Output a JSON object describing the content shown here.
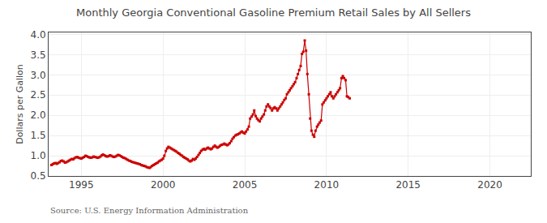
{
  "chart_data": {
    "type": "line",
    "title": "Monthly Georgia Conventional Gasoline Premium Retail Sales by All Sellers",
    "ylabel": "Dollars per Gallon",
    "annotations": [
      "Source: U.S. Energy Information Administration"
    ],
    "color": "#CC0000",
    "marker": "square",
    "grid": true,
    "xlim": [
      1993.0,
      2022.5
    ],
    "ylim": [
      0.5,
      4.05
    ],
    "xticks": [
      1995,
      2000,
      2005,
      2010,
      2015,
      2020
    ],
    "yticks": [
      0.5,
      {
        "value": 1.0,
        "label": "1.0"
      },
      1.5,
      {
        "value": 2.0,
        "label": "2.0"
      },
      2.5,
      {
        "value": 3.0,
        "label": "3.0"
      },
      3.5,
      {
        "value": 4.0,
        "label": "4.0"
      }
    ],
    "x": [
      1993.17,
      1993.25,
      1993.33,
      1993.42,
      1993.5,
      1993.58,
      1993.67,
      1993.75,
      1993.83,
      1993.92,
      1994.0,
      1994.08,
      1994.17,
      1994.25,
      1994.33,
      1994.42,
      1994.5,
      1994.58,
      1994.67,
      1994.75,
      1994.83,
      1994.92,
      1995.0,
      1995.08,
      1995.17,
      1995.25,
      1995.33,
      1995.42,
      1995.5,
      1995.58,
      1995.67,
      1995.75,
      1995.83,
      1995.92,
      1996.0,
      1996.08,
      1996.17,
      1996.25,
      1996.33,
      1996.42,
      1996.5,
      1996.58,
      1996.67,
      1996.75,
      1996.83,
      1996.92,
      1997.0,
      1997.08,
      1997.17,
      1997.25,
      1997.33,
      1997.42,
      1997.5,
      1997.58,
      1997.67,
      1997.75,
      1997.83,
      1997.92,
      1998.0,
      1998.08,
      1998.17,
      1998.25,
      1998.33,
      1998.42,
      1998.5,
      1998.58,
      1998.67,
      1998.75,
      1998.83,
      1998.92,
      1999.0,
      1999.08,
      1999.17,
      1999.25,
      1999.33,
      1999.42,
      1999.5,
      1999.58,
      1999.67,
      1999.75,
      1999.83,
      1999.92,
      2000.0,
      2000.08,
      2000.17,
      2000.25,
      2000.33,
      2000.42,
      2000.5,
      2000.58,
      2000.67,
      2000.75,
      2000.83,
      2000.92,
      2001.0,
      2001.08,
      2001.17,
      2001.25,
      2001.33,
      2001.42,
      2001.5,
      2001.58,
      2001.67,
      2001.75,
      2001.83,
      2001.92,
      2002.0,
      2002.08,
      2002.17,
      2002.25,
      2002.33,
      2002.42,
      2002.5,
      2002.58,
      2002.67,
      2002.75,
      2002.83,
      2002.92,
      2003.0,
      2003.08,
      2003.17,
      2003.25,
      2003.33,
      2003.42,
      2003.5,
      2003.58,
      2003.67,
      2003.75,
      2003.83,
      2003.92,
      2004.0,
      2004.08,
      2004.17,
      2004.25,
      2004.33,
      2004.42,
      2004.5,
      2004.58,
      2004.67,
      2004.75,
      2004.83,
      2004.92,
      2005.0,
      2005.08,
      2005.17,
      2005.25,
      2005.33,
      2005.42,
      2005.5,
      2005.58,
      2005.67,
      2005.75,
      2005.83,
      2005.92,
      2006.0,
      2006.08,
      2006.17,
      2006.25,
      2006.33,
      2006.42,
      2006.5,
      2006.58,
      2006.67,
      2006.75,
      2006.83,
      2006.92,
      2007.0,
      2007.08,
      2007.17,
      2007.25,
      2007.33,
      2007.42,
      2007.5,
      2007.58,
      2007.67,
      2007.75,
      2007.83,
      2007.92,
      2008.0,
      2008.08,
      2008.17,
      2008.25,
      2008.33,
      2008.42,
      2008.5,
      2008.58,
      2008.67,
      2008.75,
      2008.83,
      2008.92,
      2009.0,
      2009.08,
      2009.17,
      2009.25,
      2009.33,
      2009.42,
      2009.5,
      2009.58,
      2009.67,
      2009.75,
      2009.83,
      2009.92,
      2010.0,
      2010.08,
      2010.17,
      2010.25,
      2010.33,
      2010.42,
      2010.5,
      2010.58,
      2010.67,
      2010.75,
      2010.83,
      2010.92,
      2011.0,
      2011.08,
      2011.17,
      2011.25,
      2011.33,
      2011.42
    ],
    "values": [
      0.77,
      0.79,
      0.81,
      0.82,
      0.8,
      0.82,
      0.84,
      0.87,
      0.88,
      0.86,
      0.83,
      0.84,
      0.86,
      0.88,
      0.9,
      0.92,
      0.91,
      0.94,
      0.96,
      0.97,
      0.95,
      0.94,
      0.93,
      0.95,
      0.97,
      1.0,
      0.99,
      0.97,
      0.96,
      0.95,
      0.96,
      0.98,
      0.97,
      0.96,
      0.95,
      0.96,
      0.98,
      1.01,
      1.03,
      1.01,
      0.99,
      0.98,
      0.99,
      1.01,
      1.0,
      0.98,
      0.97,
      0.98,
      1.0,
      1.02,
      1.01,
      0.99,
      0.97,
      0.95,
      0.94,
      0.92,
      0.9,
      0.88,
      0.87,
      0.85,
      0.84,
      0.83,
      0.82,
      0.81,
      0.8,
      0.79,
      0.77,
      0.76,
      0.75,
      0.74,
      0.72,
      0.71,
      0.7,
      0.72,
      0.75,
      0.77,
      0.79,
      0.81,
      0.83,
      0.86,
      0.88,
      0.9,
      0.93,
      1.0,
      1.12,
      1.18,
      1.22,
      1.2,
      1.18,
      1.16,
      1.14,
      1.12,
      1.1,
      1.07,
      1.05,
      1.02,
      1.0,
      0.97,
      0.95,
      0.93,
      0.91,
      0.88,
      0.86,
      0.88,
      0.92,
      0.9,
      0.93,
      0.97,
      1.02,
      1.07,
      1.12,
      1.15,
      1.17,
      1.15,
      1.18,
      1.2,
      1.18,
      1.16,
      1.18,
      1.22,
      1.25,
      1.22,
      1.2,
      1.22,
      1.25,
      1.27,
      1.28,
      1.3,
      1.28,
      1.26,
      1.28,
      1.31,
      1.36,
      1.42,
      1.46,
      1.5,
      1.52,
      1.53,
      1.55,
      1.58,
      1.6,
      1.57,
      1.55,
      1.6,
      1.65,
      1.72,
      1.92,
      1.97,
      2.02,
      2.12,
      1.98,
      1.92,
      1.88,
      1.85,
      1.92,
      1.97,
      2.02,
      2.12,
      2.22,
      2.27,
      2.22,
      2.18,
      2.12,
      2.17,
      2.2,
      2.17,
      2.12,
      2.17,
      2.22,
      2.27,
      2.32,
      2.38,
      2.42,
      2.52,
      2.57,
      2.62,
      2.67,
      2.72,
      2.77,
      2.82,
      2.92,
      3.02,
      3.12,
      3.22,
      3.52,
      3.57,
      3.85,
      3.6,
      3.02,
      2.52,
      1.92,
      1.62,
      1.52,
      1.47,
      1.62,
      1.72,
      1.77,
      1.82,
      1.87,
      2.27,
      2.32,
      2.37,
      2.42,
      2.47,
      2.52,
      2.57,
      2.47,
      2.42,
      2.47,
      2.52,
      2.57,
      2.62,
      2.67,
      2.92,
      2.97,
      2.92,
      2.87,
      2.47,
      2.45,
      2.42
    ]
  }
}
